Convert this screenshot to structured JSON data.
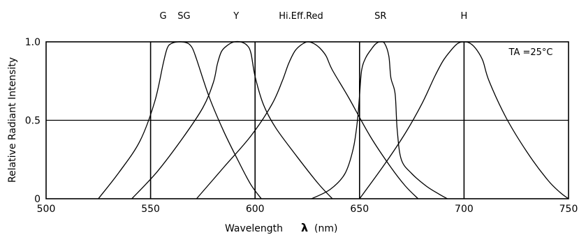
{
  "chart_data": {
    "type": "line",
    "xlabel": "Wavelength",
    "xlabel_symbol": "λ",
    "xlabel_unit": "(nm)",
    "ylabel": "Relative Radiant Intensity",
    "xlim": [
      500,
      750
    ],
    "ylim": [
      0,
      1.0
    ],
    "x_ticks": [
      500,
      550,
      600,
      650,
      700,
      750
    ],
    "y_ticks": [
      0,
      0.5,
      1.0
    ],
    "y_tick_labels": [
      "0",
      "0.5",
      "1.0"
    ],
    "grid": true,
    "annotation": "TA =25°C",
    "series": [
      {
        "name": "G",
        "x": [
          525,
          535,
          545,
          552,
          556,
          558,
          560,
          563,
          565,
          568,
          570,
          572,
          578,
          585,
          592,
          598,
          603
        ],
        "y": [
          0,
          0.17,
          0.37,
          0.62,
          0.86,
          0.96,
          0.99,
          1.0,
          1.0,
          0.99,
          0.96,
          0.89,
          0.65,
          0.43,
          0.24,
          0.09,
          0
        ]
      },
      {
        "name": "Y",
        "x": [
          541,
          553,
          565,
          575,
          580,
          582,
          584,
          587,
          590,
          593,
          596,
          598,
          600,
          604,
          610,
          620,
          630,
          637
        ],
        "y": [
          0,
          0.17,
          0.38,
          0.58,
          0.74,
          0.86,
          0.94,
          0.98,
          1.0,
          1.0,
          0.98,
          0.93,
          0.78,
          0.6,
          0.45,
          0.27,
          0.1,
          0
        ]
      },
      {
        "name": "Hi.Eff.Red",
        "x": [
          572,
          585,
          598,
          608,
          613,
          616,
          619,
          622,
          625,
          628,
          631,
          634,
          637,
          645,
          655,
          665,
          672,
          678
        ],
        "y": [
          0,
          0.2,
          0.4,
          0.6,
          0.75,
          0.86,
          0.94,
          0.98,
          1.0,
          0.99,
          0.96,
          0.91,
          0.82,
          0.64,
          0.4,
          0.2,
          0.08,
          0
        ]
      },
      {
        "name": "SR",
        "x": [
          627,
          636,
          643,
          647,
          649,
          650,
          651,
          653,
          656,
          658,
          660,
          662,
          664,
          665,
          667,
          668,
          670,
          675,
          682,
          688,
          692
        ],
        "y": [
          0,
          0.06,
          0.16,
          0.32,
          0.5,
          0.66,
          0.82,
          0.9,
          0.96,
          0.99,
          1.0,
          0.99,
          0.91,
          0.77,
          0.67,
          0.44,
          0.25,
          0.16,
          0.08,
          0.03,
          0
        ]
      },
      {
        "name": "H",
        "x": [
          650,
          662,
          672,
          680,
          686,
          690,
          694,
          697,
          700,
          703,
          706,
          709,
          712,
          720,
          730,
          740,
          746,
          750
        ],
        "y": [
          0,
          0.22,
          0.42,
          0.61,
          0.78,
          0.88,
          0.95,
          0.99,
          1.0,
          0.99,
          0.95,
          0.88,
          0.75,
          0.52,
          0.3,
          0.12,
          0.04,
          0
        ]
      }
    ],
    "series_labels": [
      {
        "text": "G",
        "x": 556
      },
      {
        "text": "SG",
        "x": 566
      },
      {
        "text": "Y",
        "x": 591
      },
      {
        "text": "Hi.Eff.Red",
        "x": 622
      },
      {
        "text": "SR",
        "x": 660
      },
      {
        "text": "H",
        "x": 700
      }
    ]
  }
}
